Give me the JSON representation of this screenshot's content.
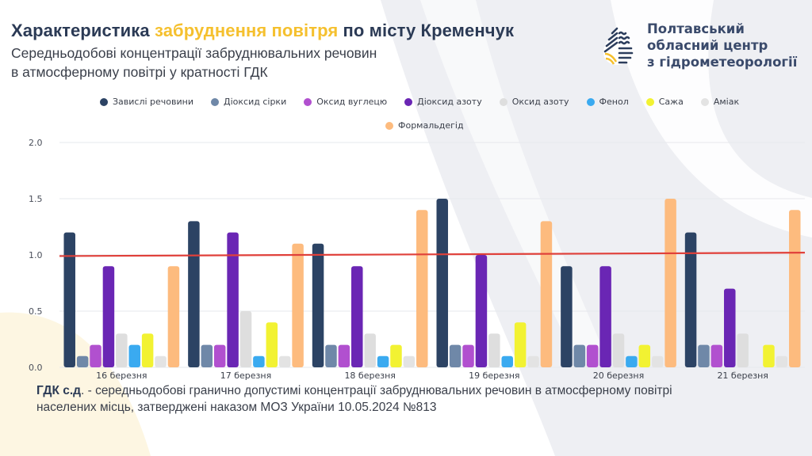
{
  "header": {
    "title_part1": "Характеристика ",
    "title_accent": "забруднення повітря",
    "title_part2": " по місту Кременчук",
    "subtitle_line1": "Середньодобові концентрації забруднювальних речовин",
    "subtitle_line2": "в атмосферному повітрі у кратності ГДК"
  },
  "org": {
    "line1": "Полтавський",
    "line2": "обласний центр",
    "line3": "з гідрометеорології",
    "logo_icon": "water-drop-logo-icon"
  },
  "colors": {
    "accent": "#f5c02e",
    "title": "#2b3a55",
    "limit_line": "#e0403a"
  },
  "chart_data": {
    "type": "bar",
    "title": "Середньодобові концентрації забруднювальних речовин в атмосферному повітрі у кратності ГДК",
    "xlabel": "",
    "ylabel": "",
    "ylim": [
      0,
      2.0
    ],
    "yticks": [
      "0.0",
      "0.5",
      "1.0",
      "1.5",
      "2.0"
    ],
    "ytick_values": [
      0,
      0.5,
      1.0,
      1.5,
      2.0
    ],
    "grid": true,
    "legend_position": "top",
    "categories": [
      "16 березня",
      "17 березня",
      "18 березня",
      "19 березня",
      "20 березня",
      "21 березня"
    ],
    "series": [
      {
        "name": "Завислі речовини",
        "color": "#2c4364",
        "values": [
          1.2,
          1.3,
          1.1,
          1.5,
          0.9,
          1.2
        ]
      },
      {
        "name": "Діоксид сірки",
        "color": "#6f88a8",
        "values": [
          0.1,
          0.2,
          0.2,
          0.2,
          0.2,
          0.2
        ]
      },
      {
        "name": "Оксид вуглецю",
        "color": "#b150cf",
        "values": [
          0.2,
          0.2,
          0.2,
          0.2,
          0.2,
          0.2
        ]
      },
      {
        "name": "Діоксид азоту",
        "color": "#6a26b4",
        "values": [
          0.9,
          1.2,
          0.9,
          1.0,
          0.9,
          0.7
        ]
      },
      {
        "name": "Оксид азоту",
        "color": "#dedede",
        "values": [
          0.3,
          0.5,
          0.3,
          0.3,
          0.3,
          0.3
        ]
      },
      {
        "name": "Фенол",
        "color": "#3aaaf0",
        "values": [
          0.2,
          0.1,
          0.1,
          0.1,
          0.1,
          0
        ]
      },
      {
        "name": "Сажа",
        "color": "#f2f232",
        "values": [
          0.3,
          0.4,
          0.2,
          0.4,
          0.2,
          0.2
        ]
      },
      {
        "name": "Аміак",
        "color": "#e3e3e3",
        "values": [
          0.1,
          0.1,
          0.1,
          0.1,
          0.1,
          0.1
        ]
      },
      {
        "name": "Формальдегід",
        "color": "#fdbb7e",
        "values": [
          0.9,
          1.1,
          1.4,
          1.3,
          1.5,
          1.4
        ]
      }
    ],
    "limit_line": {
      "name": "ГДК",
      "start": 0.99,
      "end": 1.02,
      "color": "#e0403a"
    }
  },
  "footnote": {
    "term": "ГДК с.д",
    "line1_rest": ". - середньодобові гранично допустимі концентрації забруднювальних речовин в атмосферному повітрі",
    "line2": "населених місць, затверджені наказом МОЗ України 10.05.2024 №813"
  }
}
